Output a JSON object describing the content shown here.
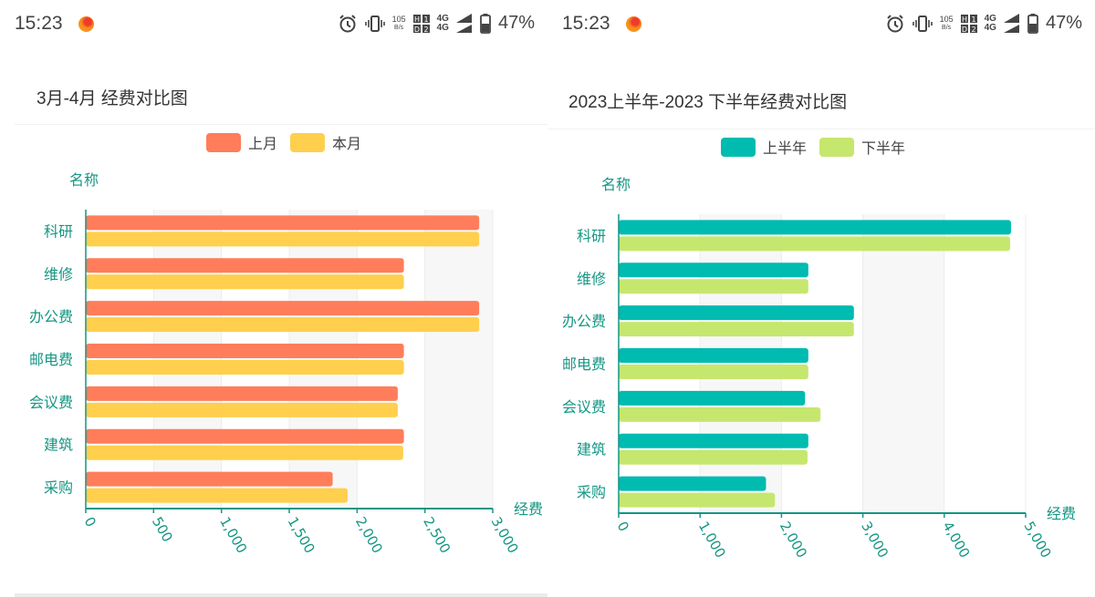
{
  "status_bar": {
    "time": "15:23",
    "net_speed_value": "105",
    "net_speed_unit": "B/s",
    "sim_labels": [
      "4G",
      "4G"
    ],
    "battery_percent": "47%",
    "icons": [
      "app-notification-icon",
      "alarm-icon",
      "vibrate-icon",
      "net-speed-icon",
      "hd-sim-icon",
      "signal-icon",
      "battery-icon"
    ]
  },
  "colors": {
    "axis": "#149683",
    "left_series": [
      "#ff7d5a",
      "#ffcf4d"
    ],
    "right_series": [
      "#00bbb0",
      "#c6e76e"
    ],
    "grid_band": "#f7f7f7"
  },
  "chart_data": [
    {
      "type": "bar",
      "orientation": "horizontal",
      "title": "3月-4月 经费对比图",
      "ylabel": "名称",
      "xlabel": "经费",
      "categories": [
        "科研",
        "维修",
        "办公费",
        "邮电费",
        "会议费",
        "建筑",
        "采购"
      ],
      "series": [
        {
          "name": "上月",
          "values": [
            2900,
            2345,
            2900,
            2345,
            2300,
            2345,
            1820
          ]
        },
        {
          "name": "本月",
          "values": [
            2900,
            2345,
            2900,
            2345,
            2300,
            2340,
            1930
          ]
        }
      ],
      "xlim": [
        0,
        3000
      ],
      "xticks": [
        0,
        500,
        1000,
        1500,
        2000,
        2500,
        3000
      ],
      "xtick_labels": [
        "0",
        "500",
        "1,000",
        "1,500",
        "2,000",
        "2,500",
        "3,000"
      ],
      "grid": true,
      "legend_position": "top-center"
    },
    {
      "type": "bar",
      "orientation": "horizontal",
      "title": "2023上半年-2023 下半年经费对比图",
      "ylabel": "名称",
      "xlabel": "经费",
      "categories": [
        "科研",
        "维修",
        "办公费",
        "邮电费",
        "会议费",
        "建筑",
        "采购"
      ],
      "series": [
        {
          "name": "上半年",
          "values": [
            4820,
            2330,
            2890,
            2330,
            2290,
            2330,
            1810
          ]
        },
        {
          "name": "下半年",
          "values": [
            4810,
            2330,
            2890,
            2330,
            2480,
            2320,
            1920
          ]
        }
      ],
      "xlim": [
        0,
        5000
      ],
      "xticks": [
        0,
        1000,
        2000,
        3000,
        4000,
        5000
      ],
      "xtick_labels": [
        "0",
        "1,000",
        "2,000",
        "3,000",
        "4,000",
        "5,000"
      ],
      "grid": true,
      "legend_position": "top-center"
    }
  ]
}
